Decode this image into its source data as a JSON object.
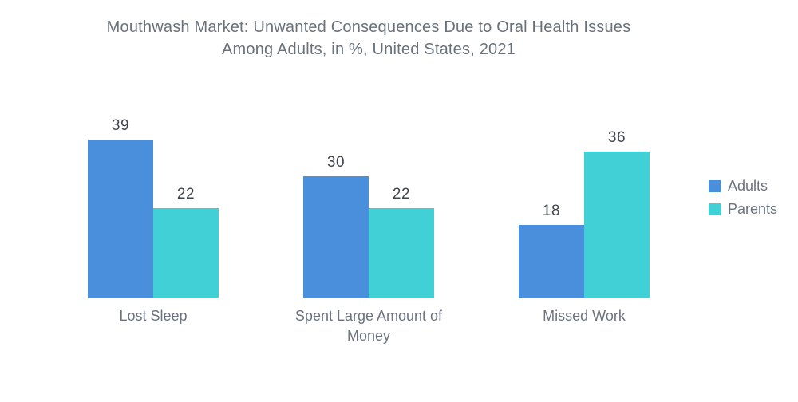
{
  "title": {
    "line1": "Mouthwash Market: Unwanted Consequences Due to Oral Health Issues",
    "line2": "Among Adults, in %, United States, 2021"
  },
  "colors": {
    "adults": "#4a8fdc",
    "parents": "#41d0d6",
    "title_text": "#69727b",
    "value_label_text": "#3f454b",
    "category_label_text": "#6b7280"
  },
  "legend": {
    "position": "right",
    "items": [
      {
        "label": "Adults",
        "color": "#4a8fdc"
      },
      {
        "label": "Parents",
        "color": "#41d0d6"
      }
    ]
  },
  "chart_data": {
    "type": "bar",
    "title": "Mouthwash Market: Unwanted Consequences Due to Oral Health Issues Among Adults, in %, United States, 2021",
    "categories": [
      "Lost Sleep",
      "Spent Large Amount of Money",
      "Missed Work"
    ],
    "series": [
      {
        "name": "Adults",
        "color": "#4a8fdc",
        "values": [
          39,
          30,
          18
        ]
      },
      {
        "name": "Parents",
        "color": "#41d0d6",
        "values": [
          22,
          22,
          36
        ]
      }
    ],
    "value_labels": [
      [
        "39",
        "22"
      ],
      [
        "30",
        "22"
      ],
      [
        "18",
        "36"
      ]
    ],
    "xlabel": "",
    "ylabel": "",
    "ylim": [
      0,
      40
    ],
    "grid": false,
    "axes_visible": false,
    "legend_position": "right",
    "units": "%"
  }
}
